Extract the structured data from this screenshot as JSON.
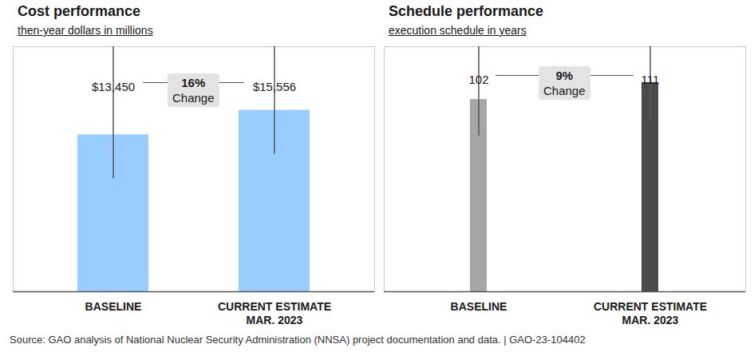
{
  "chart_data": [
    {
      "type": "bar",
      "title": "Cost performance",
      "subtitle": "then-year dollars in millions",
      "categories": [
        "BASELINE",
        "CURRENT ESTIMATE\nMAR. 2023"
      ],
      "values": [
        13450,
        15556
      ],
      "value_labels": [
        "$13,450",
        "$15,556"
      ],
      "colors": [
        "#99ccff",
        "#99ccff"
      ],
      "ylim": [
        0,
        21000
      ],
      "yticks": [],
      "tick_labels": "x",
      "data_labels": true,
      "annotation": {
        "label": "16%",
        "text": "Change"
      }
    },
    {
      "type": "bar",
      "title": "Schedule performance",
      "subtitle": "execution schedule in years",
      "categories": [
        "BASELINE",
        "CURRENT ESTIMATE\nMAR. 2023"
      ],
      "values": [
        102,
        111
      ],
      "colors": [
        "#a6a6a6",
        "#4a4a4a"
      ],
      "ylim": [
        0,
        130
      ],
      "yticks": [],
      "tick_labels": "x",
      "data_labels": true,
      "annotation": {
        "label": "9%",
        "text": "Change"
      }
    }
  ],
  "caption": "Source: GAO analysis of National Nuclear Security Administration (NNSA) project documentation and data.  |  GAO-23-104402"
}
